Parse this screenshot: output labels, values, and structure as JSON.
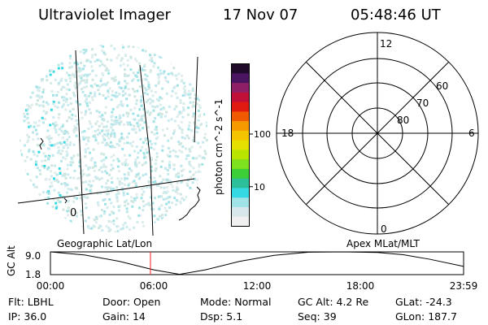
{
  "header": {
    "title": "Ultraviolet Imager",
    "date": "17 Nov 07",
    "time": "05:48:46 UT"
  },
  "colorbar": {
    "label": "photon cm^-2 s^-1",
    "ticks": [
      {
        "label": "100",
        "value": 100
      },
      {
        "label": "10",
        "value": 10
      }
    ],
    "scale": "log",
    "colors": [
      "#f0f0f0",
      "#d8e8ea",
      "#9fe3e6",
      "#35d9e3",
      "#2dbf9a",
      "#3ccf37",
      "#7fe01f",
      "#b8e400",
      "#e6e000",
      "#f5c400",
      "#f49a00",
      "#f05a00",
      "#e01a10",
      "#c0103a",
      "#8c1f66",
      "#4a1560",
      "#200a2a"
    ]
  },
  "polar_plot": {
    "mlt_labels": {
      "top": "12",
      "left": "18",
      "right": "6",
      "bottom": "0"
    },
    "mlat_labels": [
      "60",
      "70",
      "80"
    ]
  },
  "map_panel": {
    "grid_label": "0"
  },
  "timeline": {
    "left_caption": "Geographic Lat/Lon",
    "right_caption": "Apex MLat/MLT",
    "ylabel": "GC Alt",
    "y_ticks": [
      "9.0",
      "1.8"
    ],
    "x_ticks": [
      "00:00",
      "06:00",
      "12:00",
      "18:00",
      "23:59"
    ],
    "current_time_hours": 5.81,
    "curve_color": "#000000",
    "marker_color": "#ff2020"
  },
  "chart_data": {
    "type": "line",
    "xlabel": "",
    "ylabel": "GC Alt",
    "x_range_hours": [
      0,
      24
    ],
    "ylim": [
      1.8,
      9.0
    ],
    "x": [
      0,
      2,
      4,
      6,
      7.5,
      9,
      11,
      13,
      15,
      17,
      19,
      20.5,
      22,
      24
    ],
    "values": [
      9.0,
      8.0,
      6.0,
      3.3,
      1.9,
      3.3,
      6.0,
      7.9,
      8.9,
      9.0,
      8.8,
      8.1,
      6.7,
      4.4
    ]
  },
  "status": {
    "row1": [
      {
        "label": "Flt:",
        "value": "LBHL"
      },
      {
        "label": "Door:",
        "value": "Open"
      },
      {
        "label": "Mode:",
        "value": "Normal"
      },
      {
        "label": "GC Alt:",
        "value": "4.2 Re"
      },
      {
        "label": "GLat:",
        "value": "-24.3"
      }
    ],
    "row2": [
      {
        "label": "IP:",
        "value": "36.0"
      },
      {
        "label": "Gain:",
        "value": "14"
      },
      {
        "label": "Dsp:",
        "value": "5.1"
      },
      {
        "label": "Seq:",
        "value": "39"
      },
      {
        "label": "GLon:",
        "value": "187.7"
      }
    ]
  }
}
